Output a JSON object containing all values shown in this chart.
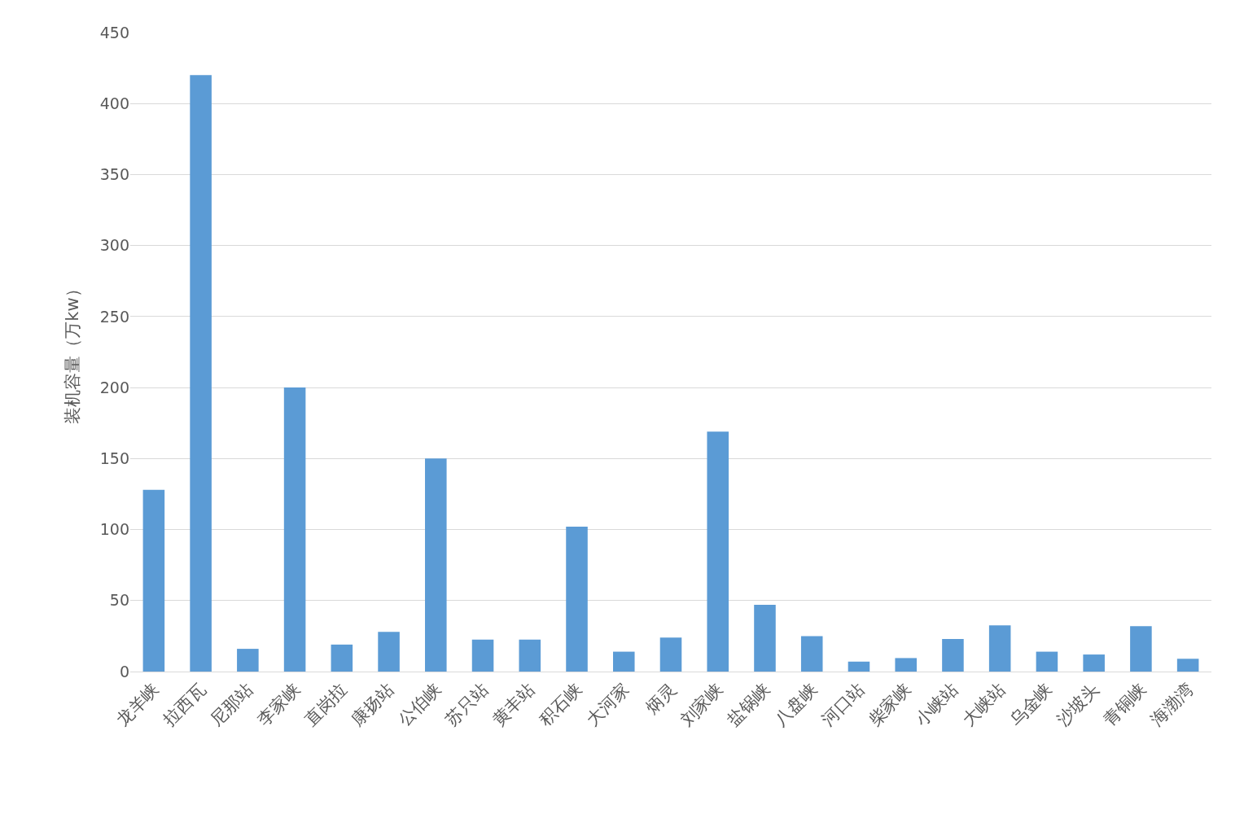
{
  "chart_data": {
    "type": "bar",
    "ylabel": "装机容量（万kw）",
    "categories": [
      "龙羊峡",
      "拉西瓦",
      "尼那站",
      "李家峡",
      "直岗拉",
      "康扬站",
      "公伯峡",
      "苏只站",
      "黄丰站",
      "积石峡",
      "大河家",
      "炳灵",
      "刘家峡",
      "盐锅峡",
      "八盘峡",
      "河口站",
      "柴家峡",
      "小峡站",
      "大峡站",
      "乌金峡",
      "沙坡头",
      "青铜峡",
      "海渤湾"
    ],
    "values": [
      128,
      420,
      16,
      200,
      19,
      28,
      150,
      22.5,
      22.5,
      102,
      14,
      24,
      169,
      47,
      25,
      7,
      9.5,
      23,
      32.5,
      14,
      12,
      32,
      9
    ],
    "color": "#5b9bd5",
    "ylim": [
      0,
      450
    ],
    "yticks": [
      0,
      50,
      100,
      150,
      200,
      250,
      300,
      350,
      400,
      450
    ],
    "grid": "y"
  }
}
